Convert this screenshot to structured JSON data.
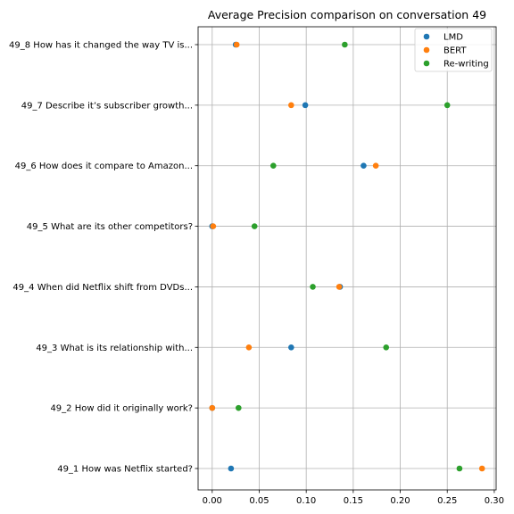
{
  "chart_data": {
    "type": "scatter",
    "title": "Average Precision comparison on conversation 49",
    "xlabel": "",
    "ylabel": "",
    "xlim": [
      -0.015,
      0.302
    ],
    "xticks": [
      0.0,
      0.05,
      0.1,
      0.15,
      0.2,
      0.25,
      0.3
    ],
    "xtick_labels": [
      "0.00",
      "0.05",
      "0.10",
      "0.15",
      "0.20",
      "0.25",
      "0.30"
    ],
    "categories": [
      "49_1 How was Netflix started?",
      "49_2 How did it originally work?",
      "49_3 What is its relationship with...",
      "49_4 When did Netflix shift from DVDs...",
      "49_5 What are its other competitors?",
      "49_6 How does it compare to Amazon...",
      "49_7 Describe it’s subscriber growth...",
      "49_8 How has it changed the way TV is..."
    ],
    "series": [
      {
        "name": "LMD",
        "color": "#1f77b4",
        "values": [
          0.02,
          0.0,
          0.084,
          0.136,
          0.0,
          0.161,
          0.099,
          0.025
        ]
      },
      {
        "name": "BERT",
        "color": "#ff7f0e",
        "values": [
          0.287,
          0.0,
          0.039,
          0.135,
          0.001,
          0.174,
          0.084,
          0.026
        ]
      },
      {
        "name": "Re-writing",
        "color": "#2ca02c",
        "values": [
          0.263,
          0.028,
          0.185,
          0.107,
          0.045,
          0.065,
          0.25,
          0.141
        ]
      }
    ],
    "grid": true,
    "legend_position": "top-right"
  }
}
